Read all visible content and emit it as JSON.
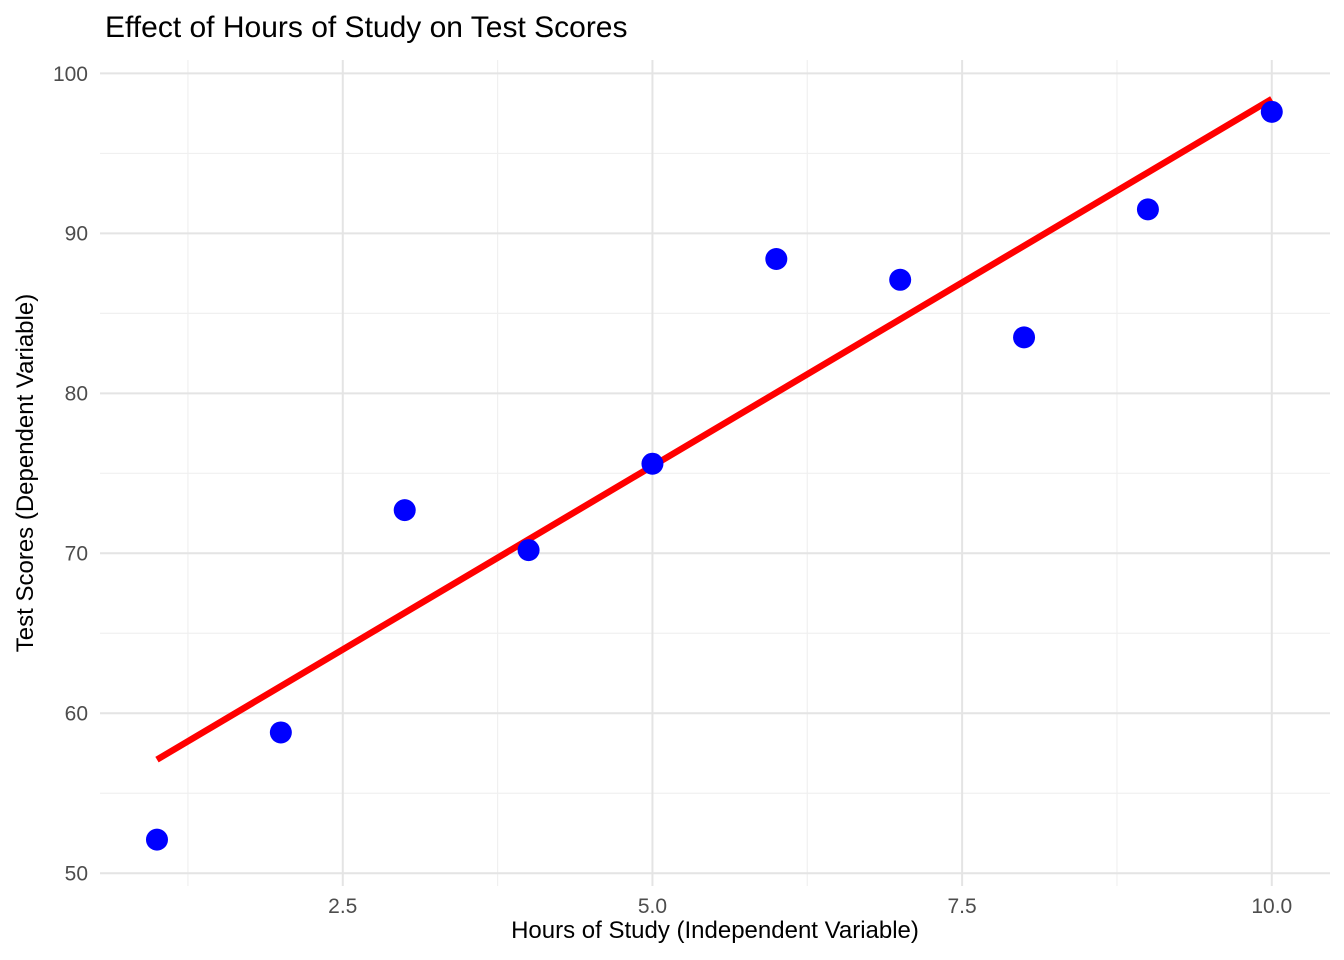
{
  "title": "Effect of Hours of Study on Test Scores",
  "chart_data": {
    "type": "scatter",
    "title": "Effect of Hours of Study on Test Scores",
    "xlabel": "Hours of Study (Independent Variable)",
    "ylabel": "Test Scores (Dependent Variable)",
    "points": {
      "x": [
        1,
        2,
        3,
        4,
        5,
        6,
        7,
        8,
        9,
        10
      ],
      "y": [
        52.1,
        58.8,
        72.7,
        70.2,
        75.6,
        88.4,
        87.1,
        83.5,
        91.5,
        97.6
      ]
    },
    "trend_line": {
      "x1": 1,
      "y1": 57.1,
      "x2": 10,
      "y2": 98.4,
      "slope": 4.58,
      "intercept": 52.5
    },
    "x_ticks": [
      2.5,
      5.0,
      7.5,
      10.0
    ],
    "x_tick_labels": [
      "2.5",
      "5.0",
      "7.5",
      "10.0"
    ],
    "y_ticks": [
      50,
      60,
      70,
      80,
      90,
      100
    ],
    "y_tick_labels": [
      "50",
      "60",
      "70",
      "80",
      "90",
      "100"
    ],
    "x_minor_ticks": [
      1.25,
      3.75,
      6.25,
      8.75
    ],
    "y_minor_ticks": [
      55,
      65,
      75,
      85,
      95
    ],
    "xlim": [
      0.54,
      10.47
    ],
    "ylim": [
      49.2,
      100.84
    ],
    "grid": true,
    "legend": "none",
    "point_radius": 11,
    "trend_line_width": 6.5,
    "colors": {
      "point": "#0000FF",
      "trend": "#FF0000",
      "grid_major": "#E4E4E4",
      "grid_minor": "#F0F0F0",
      "tick_label": "#4D4D4D",
      "text": "#000000",
      "background": "#FFFFFF"
    }
  }
}
